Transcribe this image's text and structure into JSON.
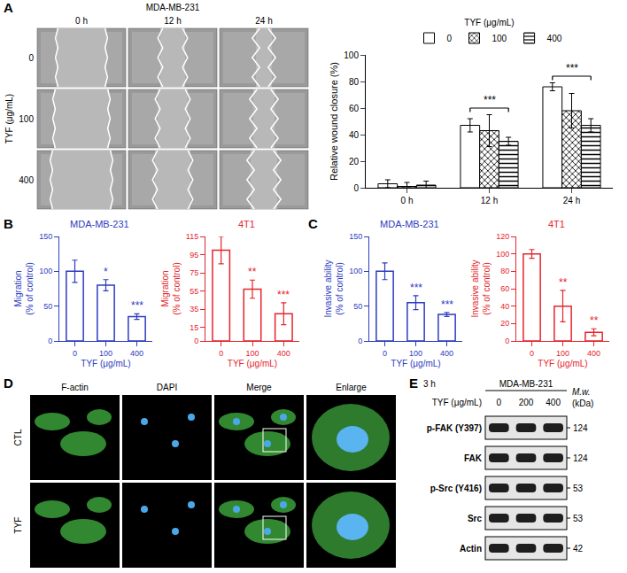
{
  "panels": [
    "A",
    "B",
    "C",
    "D",
    "E"
  ],
  "wound_images": {
    "cell_line": "MDA-MB-231",
    "times": [
      "0 h",
      "12 h",
      "24 h"
    ],
    "dose_label": "TYF (μg/mL)",
    "doses": [
      "0",
      "100",
      "400"
    ]
  },
  "chart_data": [
    {
      "type": "bar",
      "categories": [
        "0 h",
        "12 h",
        "24 h"
      ],
      "ylabel": "Relative wound closure (%)",
      "ylim": [
        0,
        100
      ],
      "yticks": [
        0,
        20,
        40,
        60,
        80,
        100
      ],
      "grid": false,
      "legend": "top",
      "legend_title": "TYF (μg/mL)",
      "series": [
        {
          "name": "0",
          "color": "#ffffff",
          "marker": "plain",
          "values": [
            3,
            47,
            76
          ],
          "errors": [
            3,
            5,
            3
          ]
        },
        {
          "name": "100",
          "color": "#ffffff",
          "marker": "crosshatch",
          "values": [
            1,
            43,
            58
          ],
          "errors": [
            3,
            12,
            13
          ]
        },
        {
          "name": "400",
          "color": "#ffffff",
          "marker": "lines",
          "values": [
            2,
            35,
            47
          ],
          "errors": [
            3,
            3,
            5
          ]
        }
      ],
      "annotations": [
        {
          "category": "12 h",
          "text": "***"
        },
        {
          "category": "24 h",
          "text": "***"
        }
      ]
    },
    {
      "type": "bar",
      "title": "MDA-MB-231",
      "xlabel": "TYF (μg/mL)",
      "ylabel": "Migration (% of control)",
      "categories": [
        "0",
        "100",
        "400"
      ],
      "values": [
        100,
        80,
        35
      ],
      "errors": [
        16,
        8,
        4
      ],
      "significance": [
        null,
        "*",
        "***"
      ],
      "color": "#2d3bbf",
      "ylim": [
        0,
        150
      ],
      "yticks": [
        0,
        50,
        100,
        150
      ],
      "grid": false
    },
    {
      "type": "bar",
      "title": "4T1",
      "xlabel": "TYF (μg/mL)",
      "ylabel": "Migration (% of control)",
      "categories": [
        "0",
        "100",
        "400"
      ],
      "values": [
        100,
        57,
        30
      ],
      "errors": [
        15,
        10,
        12
      ],
      "significance": [
        null,
        "**",
        "***"
      ],
      "color": "#e5242b",
      "ylim": [
        0,
        115
      ],
      "yticks": [
        0,
        15,
        35,
        55,
        75,
        95,
        115
      ],
      "grid": false
    },
    {
      "type": "bar",
      "title": "MDA-MB-231",
      "xlabel": "TYF (μg/mL)",
      "ylabel": "Invasive ability (% of control)",
      "categories": [
        "0",
        "100",
        "400"
      ],
      "values": [
        100,
        55,
        38
      ],
      "errors": [
        12,
        10,
        3
      ],
      "significance": [
        null,
        "***",
        "***"
      ],
      "color": "#2d3bbf",
      "ylim": [
        0,
        150
      ],
      "yticks": [
        0,
        50,
        100,
        150
      ],
      "grid": false
    },
    {
      "type": "bar",
      "title": "4T1",
      "xlabel": "TYF (μg/mL)",
      "ylabel": "Invasive ability (% of control)",
      "categories": [
        "0",
        "100",
        "400"
      ],
      "values": [
        100,
        40,
        10
      ],
      "errors": [
        5,
        18,
        4
      ],
      "significance": [
        null,
        "**",
        "**"
      ],
      "color": "#e5242b",
      "ylim": [
        0,
        120
      ],
      "yticks": [
        0,
        20,
        40,
        60,
        80,
        100,
        120
      ],
      "grid": false
    }
  ],
  "fluorescence": {
    "channels": [
      "F-actin",
      "DAPI",
      "Merge",
      "Enlarge"
    ],
    "groups": [
      "CTL",
      "TYF"
    ]
  },
  "western_blot": {
    "time": "3 h",
    "cell_line": "MDA-MB-231",
    "dose_label": "TYF (μg/mL)",
    "doses": [
      "0",
      "200",
      "400"
    ],
    "mw_label": "M.w. (kDa)",
    "rows": [
      {
        "label": "p-FAK (Y397)",
        "mw": "124"
      },
      {
        "label": "FAK",
        "mw": "124"
      },
      {
        "label": "p-Src (Y416)",
        "mw": "53"
      },
      {
        "label": "Src",
        "mw": "53"
      },
      {
        "label": "Actin",
        "mw": "42"
      }
    ]
  }
}
